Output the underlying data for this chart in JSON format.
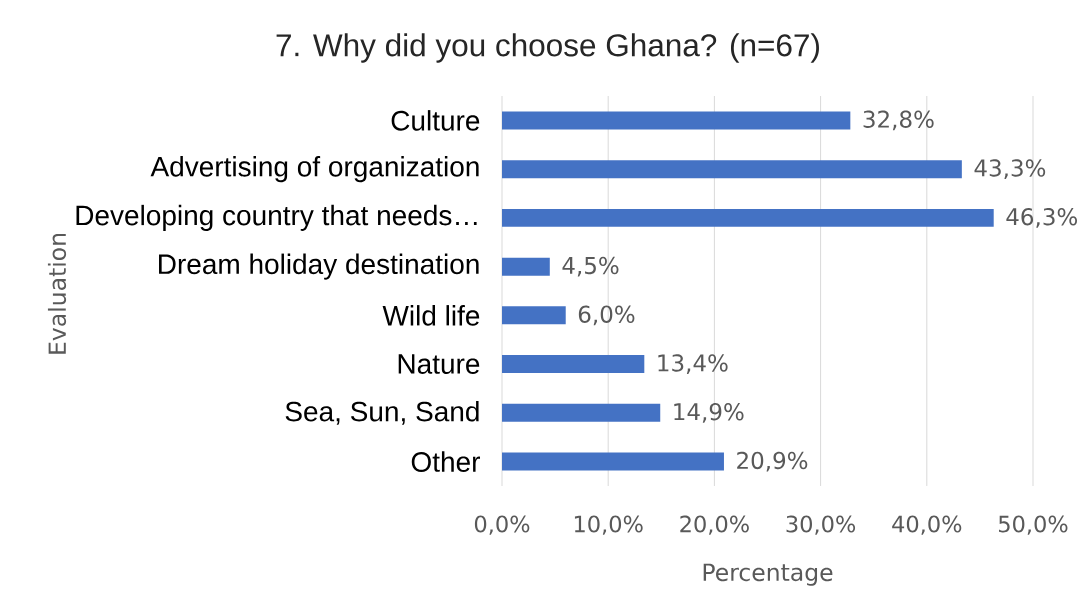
{
  "chart_data": {
    "type": "bar",
    "orientation": "horizontal",
    "title": "7. Why did you choose Ghana? (n=67)",
    "xlabel": "Percentage",
    "ylabel": "Evaluation",
    "categories": [
      "Culture",
      "Advertising of organization",
      "Developing country that needs…",
      "Dream holiday destination",
      "Wild life",
      "Nature",
      "Sea, Sun, Sand",
      "Other"
    ],
    "values": [
      32.8,
      43.3,
      46.3,
      4.5,
      6.0,
      13.4,
      14.9,
      20.9
    ],
    "value_labels": [
      "32,8%",
      "43,3%",
      "46,3%",
      "4,5%",
      "6,0%",
      "13,4%",
      "14,9%",
      "20,9%"
    ],
    "color": "#4472c4",
    "xlim": [
      0,
      50
    ],
    "xticks": [
      {
        "value": 0,
        "label": "0,0%"
      },
      {
        "value": 10,
        "label": "10,0%"
      },
      {
        "value": 20,
        "label": "20,0%"
      },
      {
        "value": 30,
        "label": "30,0%"
      },
      {
        "value": 40,
        "label": "40,0%"
      },
      {
        "value": 50,
        "label": "50,0%"
      }
    ],
    "grid": "x"
  }
}
